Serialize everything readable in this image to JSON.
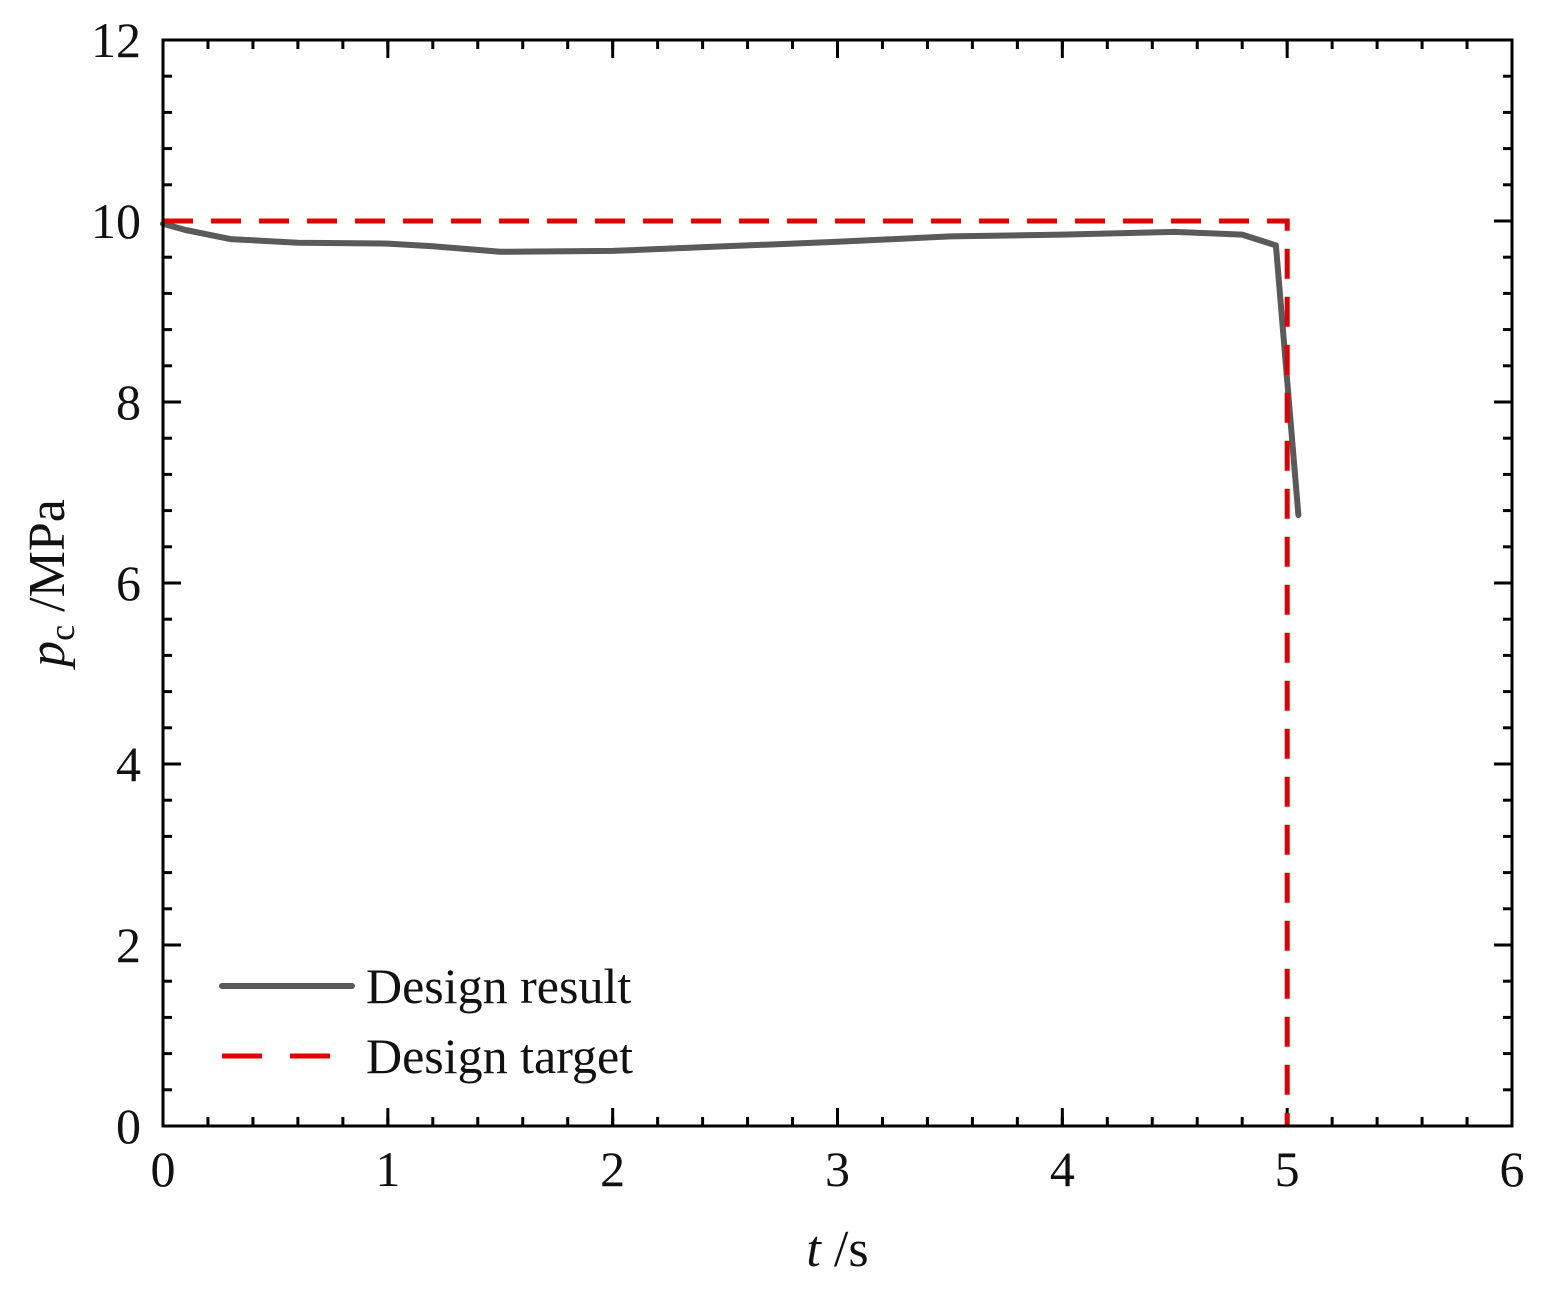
{
  "chart_data": {
    "type": "line",
    "xlabel": {
      "var": "t",
      "unit": " /s"
    },
    "ylabel": {
      "var": "p",
      "sub": "c",
      "unit": " /MPa"
    },
    "xlim": [
      0,
      6
    ],
    "ylim": [
      0,
      12
    ],
    "x_ticks": [
      "0",
      "1",
      "2",
      "3",
      "4",
      "5",
      "6"
    ],
    "y_ticks": [
      "0",
      "2",
      "4",
      "6",
      "8",
      "10",
      "12"
    ],
    "x_tick_values": [
      0,
      1,
      2,
      3,
      4,
      5,
      6
    ],
    "y_tick_values": [
      0,
      2,
      4,
      6,
      8,
      10,
      12
    ],
    "x_minor_step": 0.2,
    "y_minor_step": 0.4,
    "grid": false,
    "legend_position": "bottom-left",
    "series": [
      {
        "name": "Design result",
        "style": "solid",
        "color": "#5a5a5a",
        "x": [
          0.0,
          0.1,
          0.3,
          0.6,
          1.0,
          1.2,
          1.5,
          2.0,
          2.5,
          3.0,
          3.5,
          4.0,
          4.5,
          4.8,
          4.95,
          5.05
        ],
        "y": [
          9.97,
          9.9,
          9.8,
          9.76,
          9.75,
          9.72,
          9.66,
          9.67,
          9.72,
          9.77,
          9.83,
          9.85,
          9.88,
          9.85,
          9.73,
          6.75
        ]
      },
      {
        "name": "Design target",
        "style": "dashed",
        "color": "#e00000",
        "x": [
          0.0,
          5.0,
          5.0
        ],
        "y": [
          10.0,
          10.0,
          0.0
        ]
      }
    ]
  }
}
